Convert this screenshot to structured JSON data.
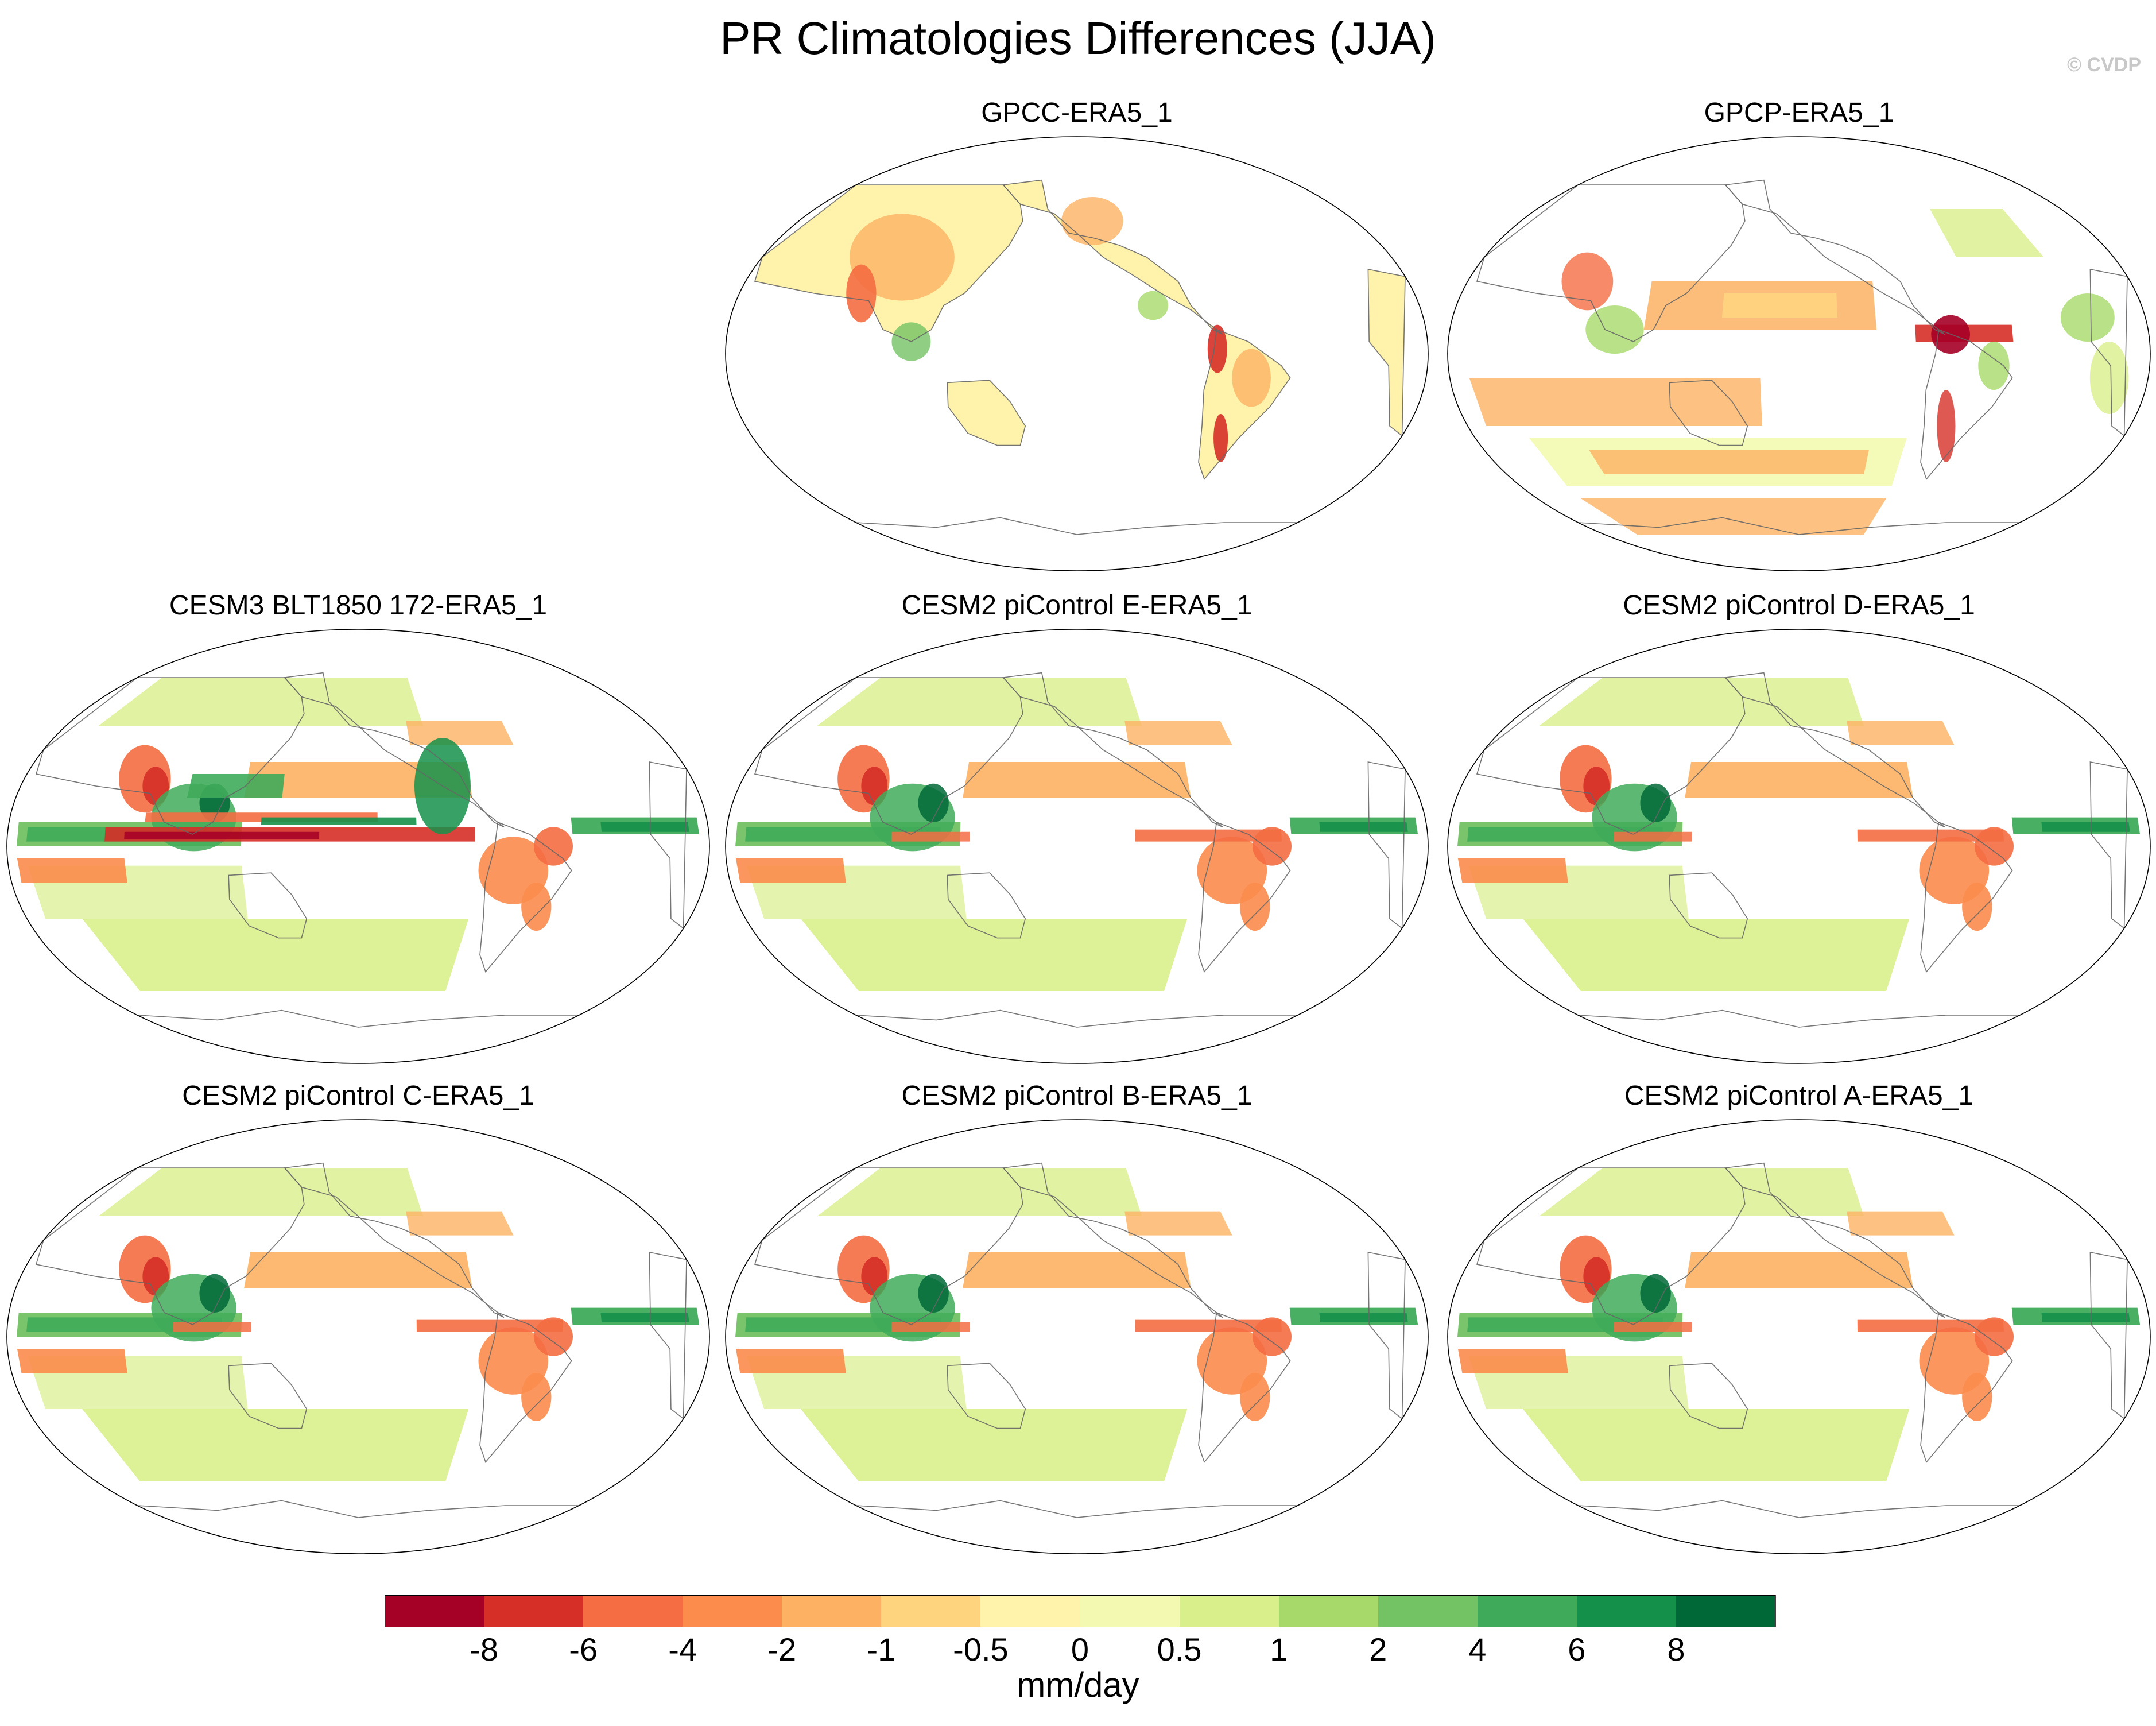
{
  "title": "PR Climatologies Differences (JJA)",
  "credit": "© CVDP",
  "panels": [
    {
      "title": "GPCC-ERA5_1",
      "kind": "gpcc"
    },
    {
      "title": "GPCP-ERA5_1",
      "kind": "gpcp"
    },
    {
      "title": "CESM3 BLT1850 172-ERA5_1",
      "kind": "cesm3"
    },
    {
      "title": "CESM2 piControl E-ERA5_1",
      "kind": "cesm2"
    },
    {
      "title": "CESM2 piControl D-ERA5_1",
      "kind": "cesm2"
    },
    {
      "title": "CESM2 piControl C-ERA5_1",
      "kind": "cesm2"
    },
    {
      "title": "CESM2 piControl B-ERA5_1",
      "kind": "cesm2"
    },
    {
      "title": "CESM2 piControl A-ERA5_1",
      "kind": "cesm2"
    }
  ],
  "colorbar": {
    "colors": [
      "#a50026",
      "#d62f27",
      "#f46d43",
      "#fb8c4c",
      "#fdb163",
      "#fed47f",
      "#fff2aa",
      "#f3f9b0",
      "#d9ef8b",
      "#a6d96a",
      "#73c264",
      "#3fab5a",
      "#15904a",
      "#006837"
    ],
    "tick_labels": [
      "-8",
      "-6",
      "-4",
      "-2",
      "-1",
      "-0.5",
      "0",
      "0.5",
      "1",
      "2",
      "4",
      "6",
      "8"
    ],
    "units": "mm/day"
  },
  "land_mask_color": "#e5e5e5"
}
